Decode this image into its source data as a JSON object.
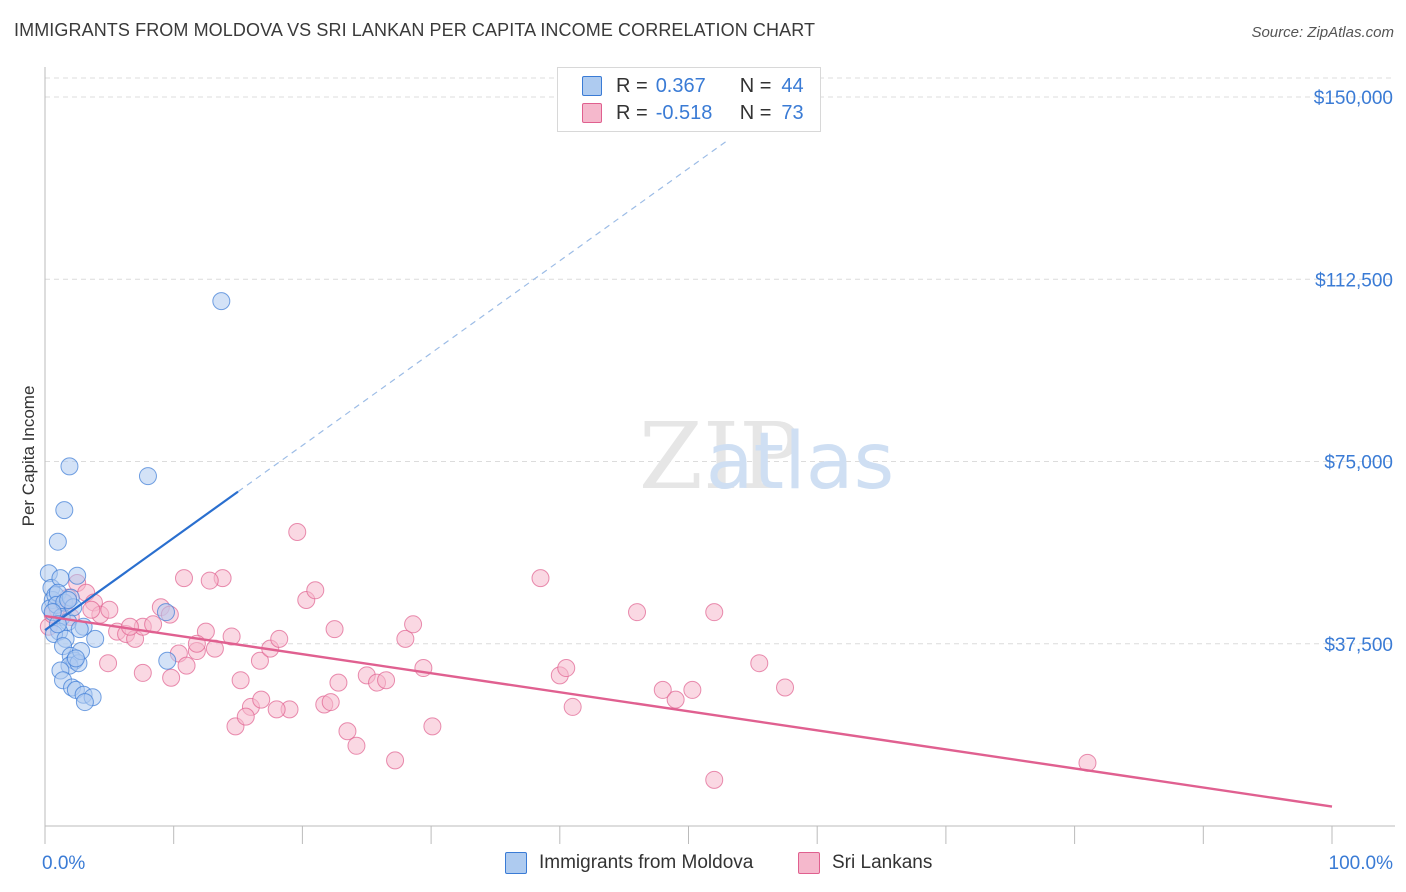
{
  "title": "IMMIGRANTS FROM MOLDOVA VS SRI LANKAN PER CAPITA INCOME CORRELATION CHART",
  "source": "Source: ZipAtlas.com",
  "watermark": {
    "zip": "ZIP",
    "atlas": "atlas"
  },
  "colors": {
    "blue": "#3a7bd5",
    "blue_fill": "#aecbf0",
    "blue_line": "#2a6fcf",
    "pink": "#e0608f",
    "pink_fill": "#f5b8cc",
    "pink_line": "#e06090",
    "axis_text": "#3a7bd5"
  },
  "legend": {
    "series1": {
      "r_label": "R =",
      "r_value": "0.367",
      "n_label": "N =",
      "n_value": "44"
    },
    "series2": {
      "r_label": "R =",
      "r_value": "-0.518",
      "n_label": "N =",
      "n_value": "73"
    }
  },
  "chart_data": {
    "type": "scatter",
    "title": "IMMIGRANTS FROM MOLDOVA VS SRI LANKAN PER CAPITA INCOME CORRELATION CHART",
    "xlabel": "",
    "ylabel": "Per Capita Income",
    "xlim": [
      0,
      100
    ],
    "ylim": [
      0,
      155000
    ],
    "x_tick_labels": [
      "0.0%",
      "100.0%"
    ],
    "y_ticks": [
      37500,
      75000,
      112500,
      150000
    ],
    "y_tick_labels": [
      "$37,500",
      "$75,000",
      "$112,500",
      "$150,000"
    ],
    "grid": true,
    "series": [
      {
        "name": "Immigrants from Moldova",
        "r": 0.367,
        "n": 44,
        "trend": {
          "x0": 0,
          "y0": 40300,
          "x1": 15,
          "y1": 68800
        },
        "trend_dashed": {
          "x0": 15,
          "y0": 68800,
          "x1": 53,
          "y1": 141000
        },
        "points": [
          [
            0.3,
            52000
          ],
          [
            0.5,
            49000
          ],
          [
            0.6,
            46500
          ],
          [
            0.4,
            44800
          ],
          [
            0.8,
            47500
          ],
          [
            1.2,
            51000
          ],
          [
            1.0,
            48000
          ],
          [
            0.9,
            45500
          ],
          [
            1.5,
            46000
          ],
          [
            1.3,
            43000
          ],
          [
            1.8,
            42000
          ],
          [
            1.1,
            40000
          ],
          [
            0.7,
            39500
          ],
          [
            1.6,
            38500
          ],
          [
            1.4,
            37000
          ],
          [
            2.0,
            35000
          ],
          [
            2.3,
            34000
          ],
          [
            1.9,
            33000
          ],
          [
            2.6,
            33500
          ],
          [
            1.2,
            32000
          ],
          [
            1.4,
            30000
          ],
          [
            2.1,
            28500
          ],
          [
            2.4,
            28000
          ],
          [
            3.0,
            27000
          ],
          [
            3.7,
            26500
          ],
          [
            3.1,
            25500
          ],
          [
            1.0,
            58500
          ],
          [
            1.5,
            65000
          ],
          [
            1.9,
            74000
          ],
          [
            8.0,
            72000
          ],
          [
            13.7,
            108000
          ],
          [
            9.4,
            44000
          ],
          [
            2.5,
            51500
          ],
          [
            3.9,
            38500
          ],
          [
            2.8,
            36000
          ],
          [
            3.0,
            41000
          ],
          [
            2.0,
            47000
          ],
          [
            2.2,
            45000
          ],
          [
            0.6,
            44000
          ],
          [
            1.8,
            46500
          ],
          [
            2.7,
            40500
          ],
          [
            2.4,
            34500
          ],
          [
            1.0,
            41500
          ],
          [
            9.5,
            34000
          ]
        ]
      },
      {
        "name": "Sri Lankans",
        "r": -0.518,
        "n": 73,
        "trend": {
          "x0": 0,
          "y0": 43200,
          "x1": 100,
          "y1": 4000
        },
        "points": [
          [
            0.3,
            41000
          ],
          [
            0.6,
            43500
          ],
          [
            1.0,
            44500
          ],
          [
            1.4,
            46000
          ],
          [
            1.8,
            47000
          ],
          [
            2.5,
            50000
          ],
          [
            3.2,
            48000
          ],
          [
            3.8,
            46000
          ],
          [
            4.3,
            43500
          ],
          [
            5.0,
            44500
          ],
          [
            5.6,
            40000
          ],
          [
            6.3,
            39500
          ],
          [
            7.0,
            38500
          ],
          [
            7.6,
            41000
          ],
          [
            8.4,
            41500
          ],
          [
            9.0,
            45000
          ],
          [
            9.7,
            43500
          ],
          [
            10.4,
            35500
          ],
          [
            11.0,
            33000
          ],
          [
            11.8,
            36000
          ],
          [
            12.5,
            40000
          ],
          [
            13.2,
            36500
          ],
          [
            13.8,
            51000
          ],
          [
            14.5,
            39000
          ],
          [
            15.2,
            30000
          ],
          [
            16.0,
            24500
          ],
          [
            16.7,
            34000
          ],
          [
            17.5,
            36500
          ],
          [
            18.2,
            38500
          ],
          [
            19.0,
            24000
          ],
          [
            19.6,
            60500
          ],
          [
            20.3,
            46500
          ],
          [
            21.0,
            48500
          ],
          [
            21.7,
            25000
          ],
          [
            22.2,
            25500
          ],
          [
            22.8,
            29500
          ],
          [
            23.5,
            19500
          ],
          [
            24.2,
            16500
          ],
          [
            25.0,
            31000
          ],
          [
            25.8,
            29500
          ],
          [
            26.5,
            30000
          ],
          [
            27.2,
            13500
          ],
          [
            28.0,
            38500
          ],
          [
            28.6,
            41500
          ],
          [
            29.4,
            32500
          ],
          [
            30.1,
            20500
          ],
          [
            14.8,
            20500
          ],
          [
            15.6,
            22500
          ],
          [
            7.6,
            31500
          ],
          [
            9.8,
            30500
          ],
          [
            11.8,
            37500
          ],
          [
            12.8,
            50500
          ],
          [
            3.6,
            44500
          ],
          [
            2.0,
            43000
          ],
          [
            4.9,
            33500
          ],
          [
            6.6,
            41000
          ],
          [
            10.8,
            51000
          ],
          [
            16.8,
            26000
          ],
          [
            18.0,
            24000
          ],
          [
            22.5,
            40500
          ],
          [
            38.5,
            51000
          ],
          [
            41.0,
            24500
          ],
          [
            46.0,
            44000
          ],
          [
            48.0,
            28000
          ],
          [
            49.0,
            26000
          ],
          [
            50.3,
            28000
          ],
          [
            52.0,
            44000
          ],
          [
            55.5,
            33500
          ],
          [
            57.5,
            28500
          ],
          [
            40.0,
            31000
          ],
          [
            40.5,
            32500
          ],
          [
            52.0,
            9500
          ],
          [
            81.0,
            13000
          ]
        ]
      }
    ]
  }
}
